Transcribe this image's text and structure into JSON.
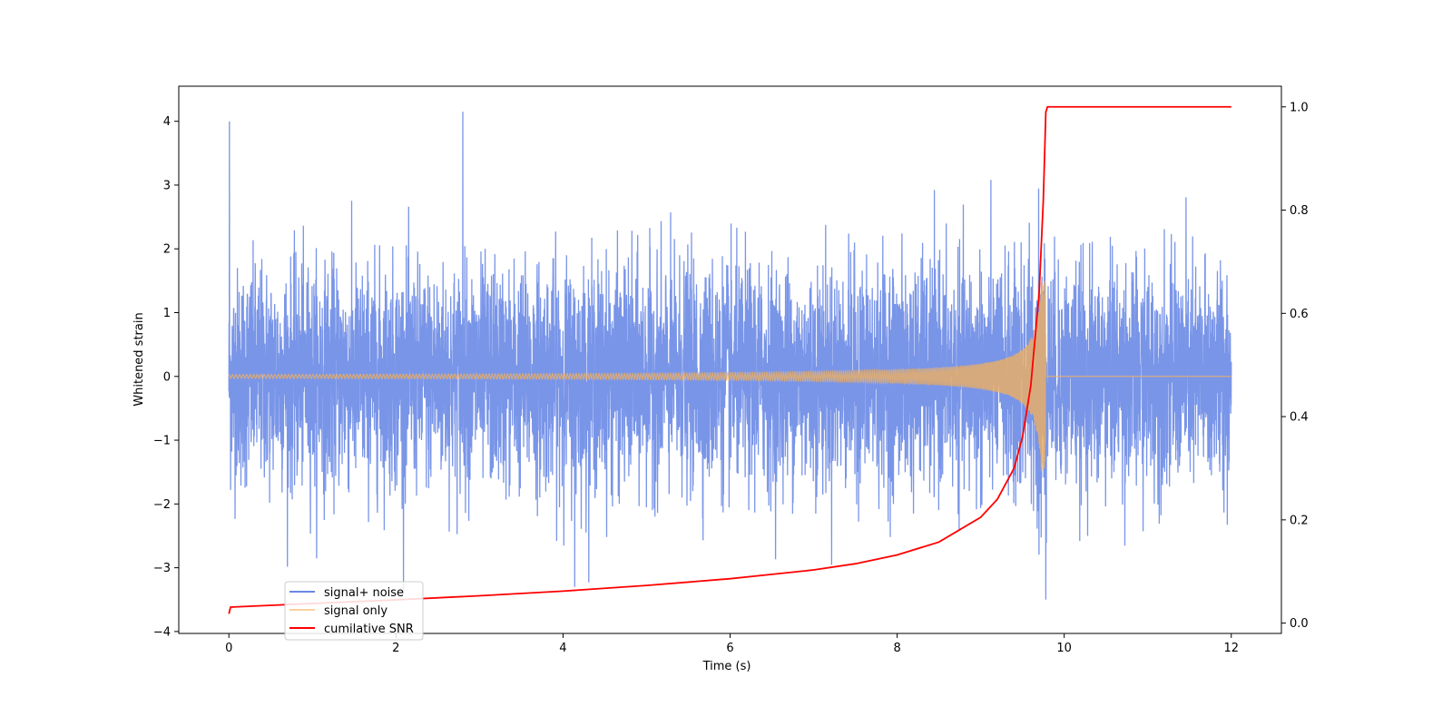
{
  "chart_data": {
    "type": "line",
    "xlabel": "Time (s)",
    "ylabel_left": "Whitened strain",
    "ylabel_right": "",
    "xlim": [
      -0.6,
      12.6
    ],
    "ylim_left": [
      -4.03,
      4.55
    ],
    "ylim_right": [
      -0.02,
      1.04
    ],
    "x_ticks": [
      0,
      2,
      4,
      6,
      8,
      10,
      12
    ],
    "x_tick_labels": [
      "0",
      "2",
      "4",
      "6",
      "8",
      "10",
      "12"
    ],
    "y_left_ticks": [
      -4,
      -3,
      -2,
      -1,
      0,
      1,
      2,
      3,
      4
    ],
    "y_left_tick_labels": [
      "−4",
      "−3",
      "−2",
      "−1",
      "0",
      "1",
      "2",
      "3",
      "4"
    ],
    "y_right_ticks": [
      0.0,
      0.2,
      0.4,
      0.6,
      0.8,
      1.0
    ],
    "y_right_tick_labels": [
      "0.0",
      "0.2",
      "0.4",
      "0.6",
      "0.8",
      "1.0"
    ],
    "grid": false,
    "legend_position": "lower-left",
    "series": [
      {
        "name": "signal+ noise",
        "axis": "left",
        "color": "#6a89e6",
        "kind": "gaussian-noise-plus-chirp",
        "x_range": [
          0,
          12
        ],
        "noise_std": 0.85,
        "min": -3.5,
        "max": 4.15
      },
      {
        "name": "signal only",
        "axis": "left",
        "color": "#f5b15a",
        "kind": "chirp",
        "x_range": [
          0,
          12
        ],
        "merger_time": 9.78,
        "peak_amplitude": 1.5,
        "early_amplitude": 0.03
      },
      {
        "name": "cumilative SNR",
        "axis": "right",
        "color": "#ff0000",
        "x": [
          0,
          0.02,
          1,
          2,
          3,
          4,
          5,
          6,
          7,
          7.5,
          8,
          8.5,
          9,
          9.2,
          9.4,
          9.5,
          9.6,
          9.7,
          9.75,
          9.78,
          9.8,
          10,
          11,
          12
        ],
        "y": [
          0.018,
          0.031,
          0.038,
          0.045,
          0.053,
          0.062,
          0.073,
          0.086,
          0.103,
          0.115,
          0.132,
          0.157,
          0.205,
          0.24,
          0.3,
          0.36,
          0.46,
          0.64,
          0.82,
          0.99,
          1.0,
          1.0,
          1.0,
          1.0
        ]
      }
    ]
  }
}
